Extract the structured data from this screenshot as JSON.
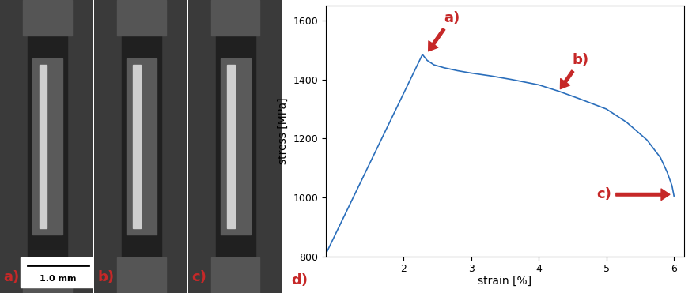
{
  "images": {
    "labels": [
      "a)",
      "b)",
      "c)"
    ],
    "scale_bar": "1.0 mm"
  },
  "chart_data": {
    "type": "line",
    "panel_label": "d)",
    "xlabel": "strain [%]",
    "ylabel": "stress [MPa]",
    "x": [
      0.86,
      2.28,
      2.35,
      2.45,
      2.6,
      2.8,
      3.0,
      3.3,
      3.6,
      4.0,
      4.3,
      4.6,
      5.0,
      5.3,
      5.6,
      5.8,
      5.9,
      5.97,
      6.0
    ],
    "values": [
      812,
      1485,
      1465,
      1450,
      1440,
      1430,
      1422,
      1412,
      1400,
      1382,
      1360,
      1335,
      1300,
      1255,
      1195,
      1135,
      1085,
      1040,
      1005
    ],
    "color": "#2a6ebb",
    "xlim": [
      0.85,
      6.15
    ],
    "ylim": [
      800,
      1650
    ],
    "xticks": [
      2,
      3,
      4,
      5,
      6
    ],
    "yticks": [
      800,
      1000,
      1200,
      1400,
      1600
    ],
    "annotations": [
      {
        "text": "a)",
        "x": 2.35,
        "y": 1490
      },
      {
        "text": "b)",
        "x": 4.3,
        "y": 1362
      },
      {
        "text": "c)",
        "x": 5.97,
        "y": 1010
      }
    ]
  }
}
